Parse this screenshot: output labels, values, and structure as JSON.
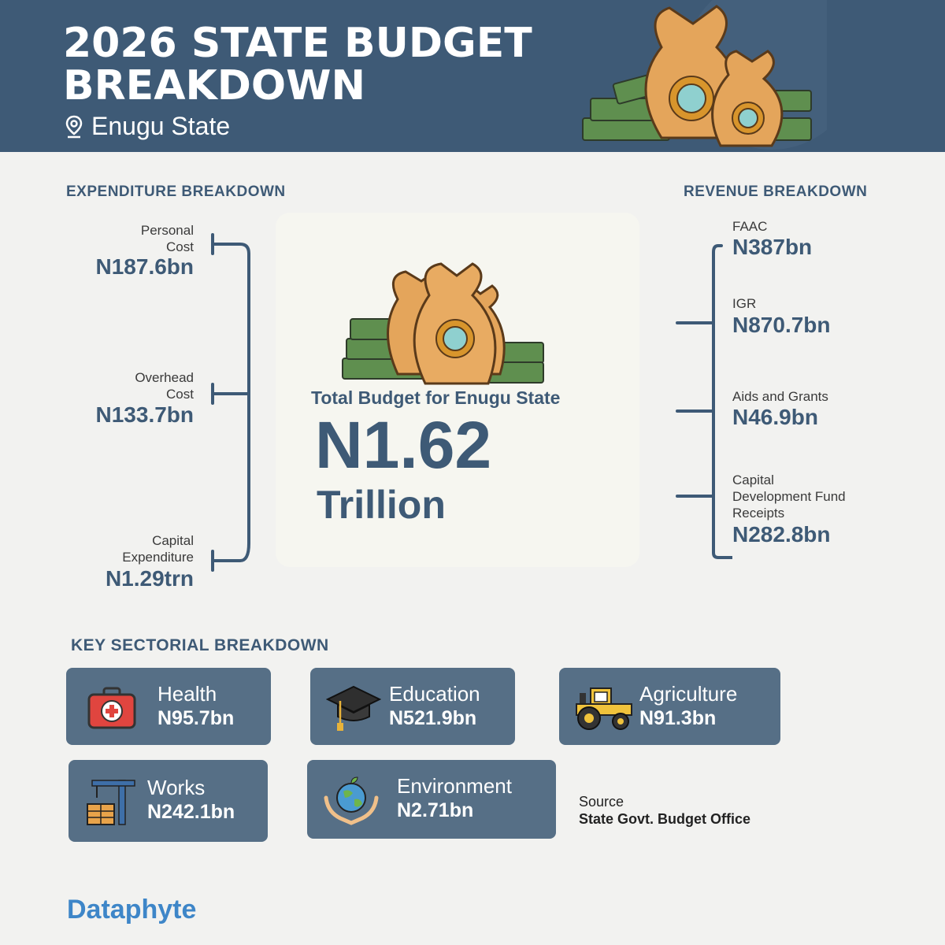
{
  "header": {
    "title": "2026 STATE BUDGET BREAKDOWN",
    "location": "Enugu State",
    "pin_icon": "location-pin-icon",
    "art_icon": "money-bags-icon"
  },
  "expenditure": {
    "title": "EXPENDITURE BREAKDOWN",
    "items": [
      {
        "label_line1": "Personal",
        "label_line2": "Cost",
        "value": "N187.6bn"
      },
      {
        "label_line1": "Overhead",
        "label_line2": "Cost",
        "value": "N133.7bn"
      },
      {
        "label_line1": "Capital",
        "label_line2": "Expenditure",
        "value": "N1.29trn"
      }
    ]
  },
  "revenue": {
    "title": "REVENUE BREAKDOWN",
    "items": [
      {
        "label": "FAAC",
        "value": "N387bn"
      },
      {
        "label": "IGR",
        "value": "N870.7bn"
      },
      {
        "label": "Aids and Grants",
        "value": "N46.9bn"
      },
      {
        "label_line1": "Capital",
        "label_line2": "Development Fund",
        "label_line3": "Receipts",
        "value": "N282.8bn"
      }
    ]
  },
  "total": {
    "label": "Total Budget for Enugu State",
    "value": "N1.62",
    "unit": "Trillion"
  },
  "sectors": {
    "title": "KEY SECTORIAL BREAKDOWN",
    "items": [
      {
        "name": "Health",
        "value": "N95.7bn",
        "icon": "first-aid-kit-icon"
      },
      {
        "name": "Education",
        "value": "N521.9bn",
        "icon": "graduation-cap-icon"
      },
      {
        "name": "Agriculture",
        "value": "N91.3bn",
        "icon": "tractor-icon"
      },
      {
        "name": "Works",
        "value": "N242.1bn",
        "icon": "construction-crane-icon"
      },
      {
        "name": "Environment",
        "value": "N2.71bn",
        "icon": "globe-hands-icon"
      }
    ]
  },
  "source": {
    "label": "Source",
    "value": "State Govt. Budget Office"
  },
  "brand": "Dataphyte",
  "colors": {
    "header": "#3e5a76",
    "accent": "#3e5a76",
    "sector_card": "#566f86",
    "background": "#f2f2f0",
    "brand": "#3e86c8"
  }
}
